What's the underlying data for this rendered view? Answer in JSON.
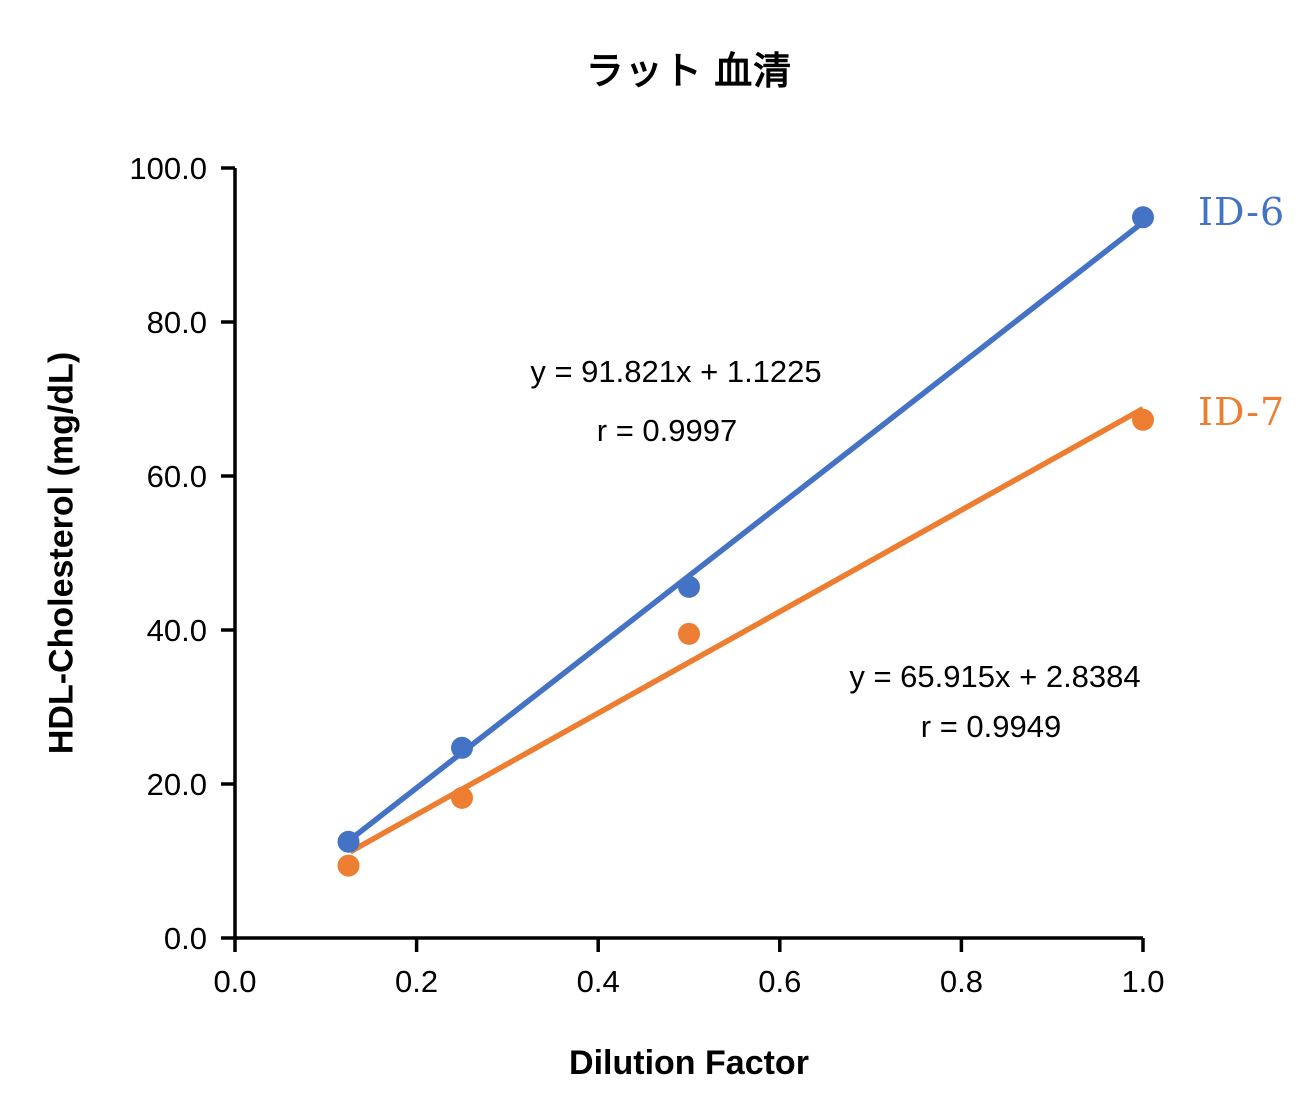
{
  "chart_data": {
    "type": "scatter",
    "title": "ラット 血清",
    "xlabel": "Dilution Factor",
    "ylabel": "HDL-Cholesterol (mg/dL)",
    "xlim": [
      0.0,
      1.0
    ],
    "ylim": [
      0.0,
      100.0
    ],
    "x_ticks": [
      "0.0",
      "0.2",
      "0.4",
      "0.6",
      "0.8",
      "1.0"
    ],
    "y_ticks": [
      "0.0",
      "20.0",
      "40.0",
      "60.0",
      "80.0",
      "100.0"
    ],
    "grid": false,
    "axis_color": "#000000",
    "legend_position": "labels-right-of-last-point",
    "series": [
      {
        "name": "ID-6",
        "color": "#4472C4",
        "x": [
          0.125,
          0.25,
          0.5,
          1.0
        ],
        "y": [
          12.5,
          24.7,
          45.6,
          93.6
        ],
        "trendline": {
          "slope": 91.821,
          "intercept": 1.1225,
          "x_start": 0.127,
          "x_end": 1.0
        },
        "equation": "y = 91.821x + 1.1225",
        "r_text": "r = 0.9997"
      },
      {
        "name": "ID-7",
        "color": "#ED7D31",
        "x": [
          0.125,
          0.25,
          0.5,
          1.0
        ],
        "y": [
          9.4,
          18.2,
          39.5,
          67.3
        ],
        "trendline": {
          "slope": 65.915,
          "intercept": 2.8384,
          "x_start": 0.127,
          "x_end": 1.0
        },
        "equation": "y = 65.915x + 2.8384",
        "r_text": "r = 0.9949"
      }
    ]
  }
}
